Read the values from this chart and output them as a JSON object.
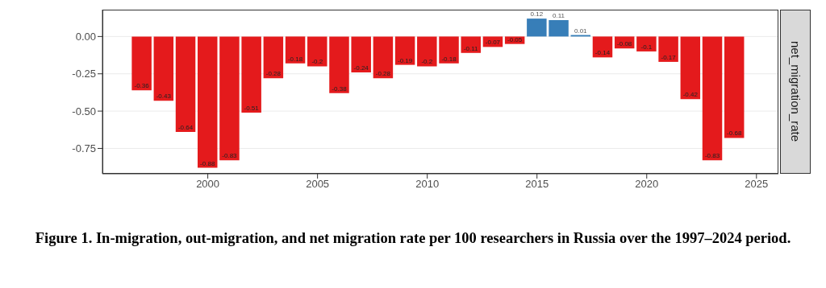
{
  "chart_data": {
    "type": "bar",
    "title": "Figure 1. In-migration, out-migration, and net migration rate per 100 researchers in Russia over the 1997–2024 period.",
    "annotations": [
      "net_migration_rate"
    ],
    "x": [
      1997,
      1998,
      1999,
      2000,
      2001,
      2002,
      2003,
      2004,
      2005,
      2006,
      2007,
      2008,
      2009,
      2010,
      2011,
      2012,
      2013,
      2014,
      2015,
      2016,
      2017,
      2018,
      2019,
      2020,
      2021,
      2022,
      2023,
      2024
    ],
    "values": [
      -0.36,
      -0.43,
      -0.64,
      -0.88,
      -0.83,
      -0.51,
      -0.28,
      -0.18,
      -0.2,
      -0.38,
      -0.24,
      -0.28,
      -0.19,
      -0.2,
      -0.18,
      -0.11,
      -0.07,
      -0.05,
      0.12,
      0.11,
      0.01,
      -0.14,
      -0.08,
      -0.1,
      -0.17,
      -0.42,
      -0.83,
      -0.68
    ],
    "colors": [
      "#e41a1c",
      "#e41a1c",
      "#e41a1c",
      "#e41a1c",
      "#e41a1c",
      "#e41a1c",
      "#e41a1c",
      "#e41a1c",
      "#e41a1c",
      "#e41a1c",
      "#e41a1c",
      "#e41a1c",
      "#e41a1c",
      "#e41a1c",
      "#e41a1c",
      "#e41a1c",
      "#e41a1c",
      "#e41a1c",
      "#377eb8",
      "#377eb8",
      "#377eb8",
      "#e41a1c",
      "#e41a1c",
      "#e41a1c",
      "#e41a1c",
      "#e41a1c",
      "#e41a1c",
      "#e41a1c"
    ],
    "data_labels": true,
    "xlim": [
      1995.2,
      2026
    ],
    "xticks": [
      2000,
      2005,
      2010,
      2015,
      2020,
      2025
    ],
    "ylim": [
      -0.92,
      0.18
    ],
    "yticks": [
      {
        "value": 0,
        "label": "0.00"
      },
      {
        "value": -0.25,
        "label": "-0.25"
      },
      {
        "value": -0.5,
        "label": "-0.50"
      },
      {
        "value": -0.75,
        "label": "-0.75"
      }
    ],
    "grid": "y"
  }
}
